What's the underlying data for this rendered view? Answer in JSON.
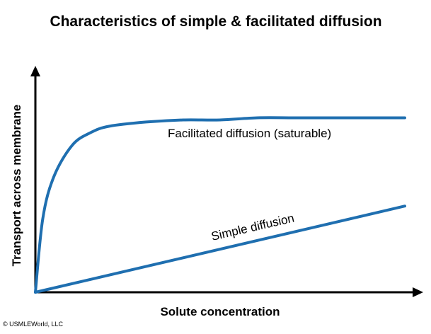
{
  "chart_data": {
    "type": "line",
    "title": "Characteristics of simple & facilitated diffusion",
    "xlabel": "Solute concentration",
    "ylabel": "Transport across membrane",
    "credit": "© USMLEWorld, LLC",
    "axis_ticks": false,
    "grid": false,
    "xlim": [
      0,
      1
    ],
    "ylim": [
      0,
      1
    ],
    "colors": {
      "curve": "#1f6fb0",
      "axis": "#000000"
    },
    "series": [
      {
        "name": "Facilitated diffusion (saturable)",
        "x": [
          0,
          0.02,
          0.05,
          0.1,
          0.15,
          0.2,
          0.3,
          0.4,
          0.5,
          0.6,
          0.7,
          0.8,
          0.9,
          1.0
        ],
        "y": [
          0,
          0.35,
          0.55,
          0.7,
          0.76,
          0.79,
          0.81,
          0.82,
          0.82,
          0.83,
          0.83,
          0.83,
          0.83,
          0.83
        ]
      },
      {
        "name": "Simple diffusion",
        "x": [
          0,
          1.0
        ],
        "y": [
          0,
          0.41
        ]
      }
    ]
  }
}
